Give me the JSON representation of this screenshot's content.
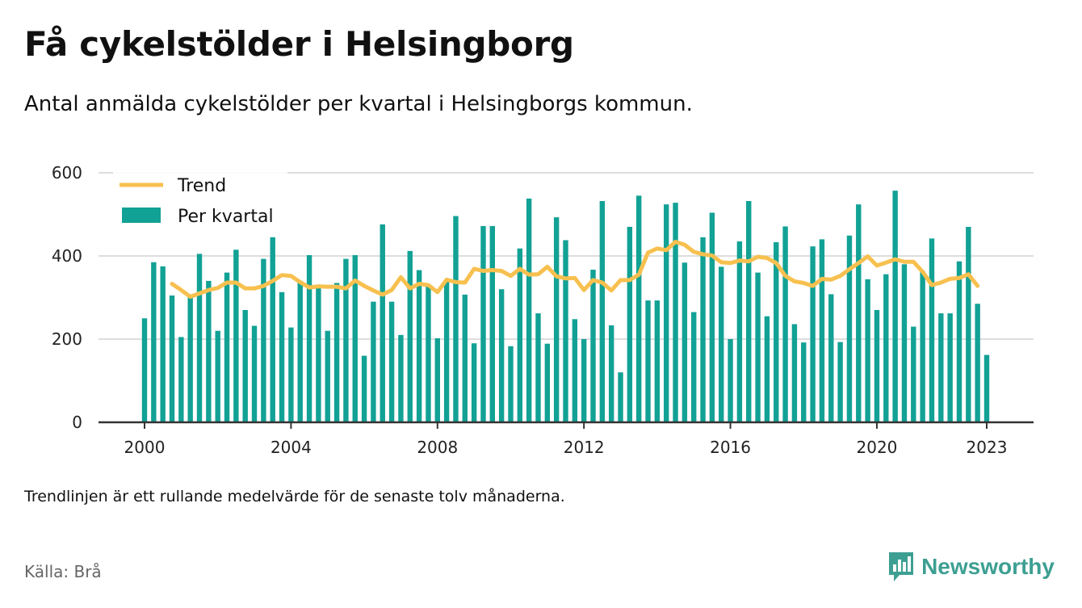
{
  "title": "Få cykelstölder i Helsingborg",
  "subtitle": "Antal anmälda cykelstölder per kvartal i Helsingborgs kommun.",
  "footnote": "Trendlinjen är ett rullande medelvärde för de senaste tolv månaderna.",
  "source": "Källa: Brå",
  "brand": {
    "name": "Newsworthy",
    "icon": "bar-chart-speech-bubble-icon"
  },
  "colors": {
    "bars": "#12a195",
    "trend": "#f7c04f",
    "grid": "#dddddd",
    "axis": "#333333",
    "brand": "#3d9f92"
  },
  "chart_data": {
    "type": "bar",
    "x_start": "2000 Q1",
    "x_ticks": [
      "2000",
      "2004",
      "2008",
      "2012",
      "2016",
      "2020",
      "2023"
    ],
    "y_ticks": [
      "0",
      "200",
      "400",
      "600"
    ],
    "ylim": [
      0,
      600
    ],
    "grid": true,
    "legend_position": "top-left",
    "series": [
      {
        "name": "Per kvartal",
        "type": "bar",
        "values": [
          250,
          385,
          375,
          305,
          205,
          305,
          405,
          340,
          220,
          360,
          415,
          270,
          232,
          393,
          445,
          313,
          228,
          340,
          402,
          325,
          220,
          335,
          393,
          402,
          160,
          290,
          476,
          290,
          210,
          412,
          366,
          330,
          202,
          338,
          496,
          307,
          190,
          472,
          472,
          320,
          183,
          418,
          538,
          262,
          189,
          493,
          438,
          248,
          200,
          367,
          532,
          233,
          120,
          470,
          545,
          293,
          293,
          524,
          528,
          384,
          265,
          445,
          504,
          374,
          200,
          435,
          532,
          360,
          255,
          433,
          471,
          236,
          192,
          423,
          440,
          308,
          193,
          449,
          524,
          344,
          270,
          356,
          557,
          380,
          230,
          363,
          442,
          262,
          262,
          387,
          470,
          285,
          162
        ]
      },
      {
        "name": "Trend",
        "type": "line",
        "start_index": 3,
        "values": [
          333,
          318,
          302,
          310,
          318,
          323,
          336,
          336,
          322,
          322,
          328,
          340,
          354,
          352,
          337,
          324,
          327,
          326,
          326,
          322,
          341,
          328,
          317,
          307,
          318,
          349,
          322,
          333,
          330,
          313,
          343,
          337,
          336,
          369,
          364,
          366,
          364,
          352,
          369,
          355,
          356,
          374,
          351,
          346,
          347,
          318,
          342,
          336,
          317,
          342,
          342,
          355,
          408,
          418,
          414,
          434,
          427,
          410,
          404,
          401,
          385,
          383,
          389,
          387,
          398,
          395,
          383,
          352,
          339,
          335,
          328,
          345,
          343,
          352,
          368,
          383,
          399,
          377,
          384,
          392,
          386,
          386,
          362,
          330,
          336,
          345,
          347,
          356,
          328
        ]
      }
    ]
  }
}
